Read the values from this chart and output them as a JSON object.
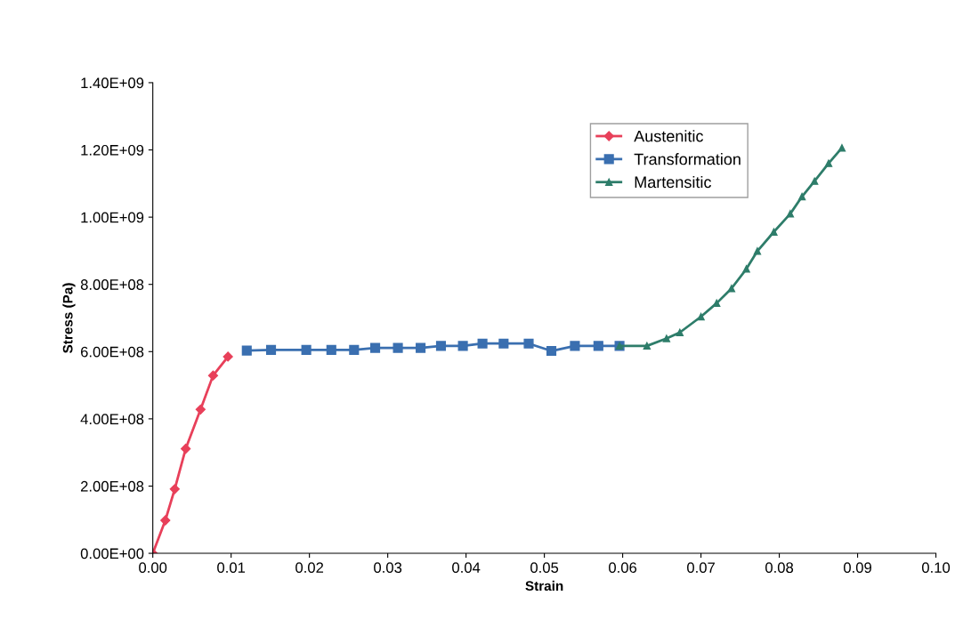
{
  "chart_data": {
    "type": "line",
    "xlabel": "Strain",
    "ylabel": "Stress (Pa)",
    "xlim": [
      0,
      0.1
    ],
    "xticks": [
      {
        "value": 0,
        "label": "0.00"
      },
      {
        "value": 0.01,
        "label": "0.01"
      },
      {
        "value": 0.02,
        "label": "0.02"
      },
      {
        "value": 0.03,
        "label": "0.03"
      },
      {
        "value": 0.04,
        "label": "0.04"
      },
      {
        "value": 0.05,
        "label": "0.05"
      },
      {
        "value": 0.06,
        "label": "0.06"
      },
      {
        "value": 0.07,
        "label": "0.07"
      },
      {
        "value": 0.08,
        "label": "0.08"
      },
      {
        "value": 0.09,
        "label": "0.09"
      },
      {
        "value": 0.1,
        "label": "0.10"
      }
    ],
    "ylim": [
      0,
      1400000000.0
    ],
    "yticks": [
      {
        "value": 0,
        "label": "0.00E+00"
      },
      {
        "value": 200000000.0,
        "label": "2.00E+08"
      },
      {
        "value": 400000000.0,
        "label": "4.00E+08"
      },
      {
        "value": 600000000.0,
        "label": "6.00E+08"
      },
      {
        "value": 800000000.0,
        "label": "8.00E+08"
      },
      {
        "value": 1000000000.0,
        "label": "1.00E+09"
      },
      {
        "value": 1200000000.0,
        "label": "1.20E+09"
      },
      {
        "value": 1400000000.0,
        "label": "1.40E+09"
      }
    ],
    "grid": false,
    "legend": "top right",
    "series": [
      {
        "name": "Austenitic",
        "color": "#e8405a",
        "marker": "diamond",
        "x": [
          0,
          0.0016,
          0.0028,
          0.0042,
          0.0061,
          0.0077,
          0.0096
        ],
        "values": [
          0,
          98000000.0,
          191000000.0,
          311000000.0,
          428000000.0,
          529000000.0,
          585000000.0
        ]
      },
      {
        "name": "Transformation",
        "color": "#3a6fb0",
        "marker": "square",
        "x": [
          0.012,
          0.0151,
          0.0196,
          0.0228,
          0.0257,
          0.0284,
          0.0313,
          0.0342,
          0.0368,
          0.0396,
          0.0421,
          0.0448,
          0.048,
          0.0509,
          0.0539,
          0.0569,
          0.0596
        ],
        "values": [
          603000000.0,
          605000000.0,
          605000000.0,
          605000000.0,
          605000000.0,
          611000000.0,
          611000000.0,
          611000000.0,
          617000000.0,
          617000000.0,
          624000000.0,
          624000000.0,
          624000000.0,
          602000000.0,
          617000000.0,
          617000000.0,
          617000000.0
        ]
      },
      {
        "name": "Martensitic",
        "color": "#2e7d6a",
        "marker": "triangle",
        "x": [
          0.0596,
          0.0631,
          0.0656,
          0.0673,
          0.07,
          0.072,
          0.0739,
          0.0758,
          0.0772,
          0.0793,
          0.0814,
          0.0829,
          0.0845,
          0.0863,
          0.088
        ],
        "values": [
          617000000.0,
          617000000.0,
          639000000.0,
          657000000.0,
          704000000.0,
          744000000.0,
          788000000.0,
          846000000.0,
          899000000.0,
          956000000.0,
          1010000000.0,
          1061000000.0,
          1107000000.0,
          1160000000.0,
          1206000000.0
        ]
      }
    ]
  }
}
